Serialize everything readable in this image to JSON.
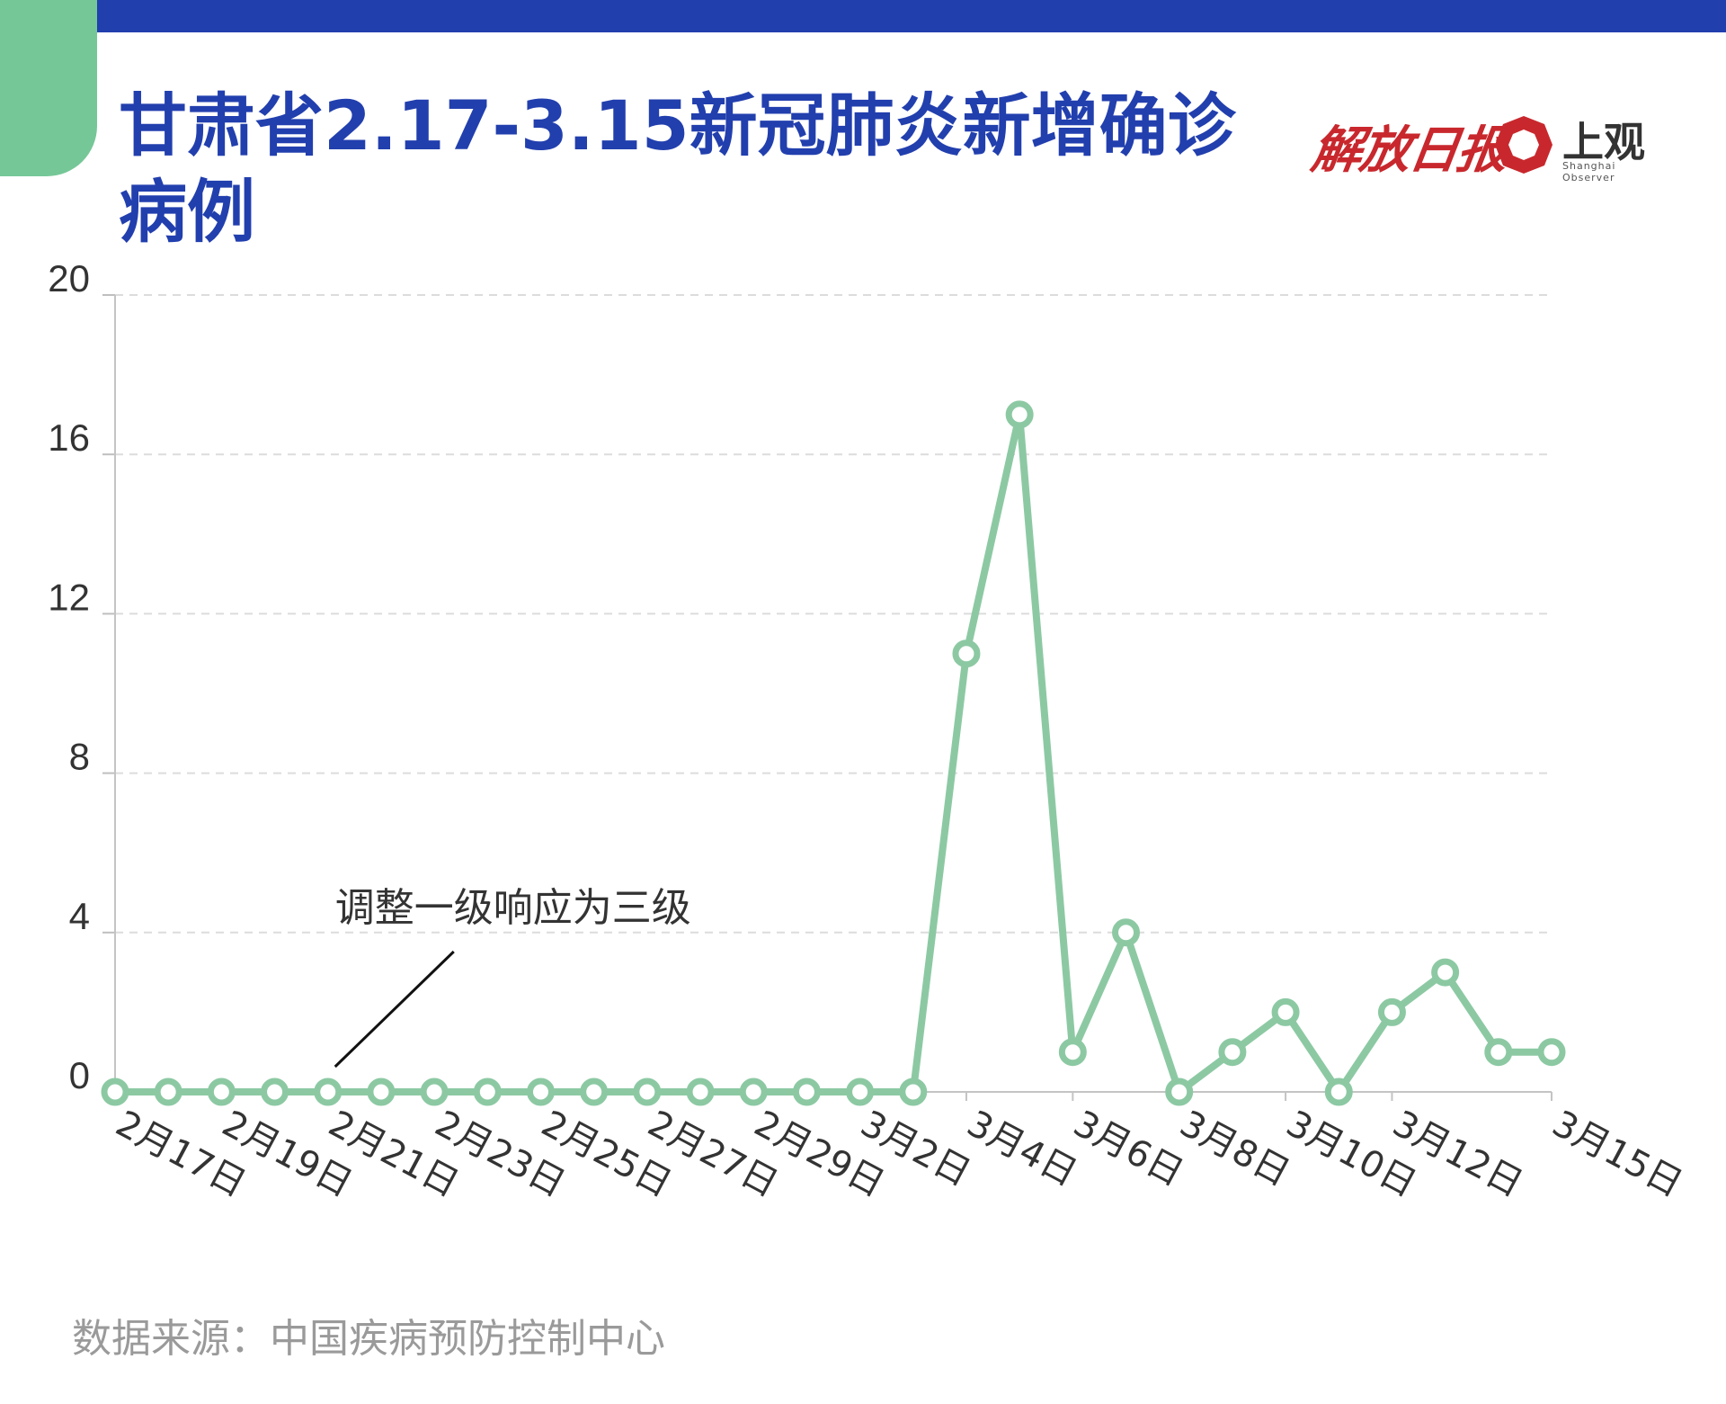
{
  "header": {
    "title": "甘肃省2.17-3.15新冠肺炎新增确诊病例",
    "logo_calligraphy": "解放日报",
    "logo_text": "上观",
    "logo_sub": "Shanghai Observer",
    "accent_color": "#223fae",
    "tab_color": "#76c797",
    "logo_color": "#c8282d"
  },
  "chart_data": {
    "type": "line",
    "title": "甘肃省2.17-3.15新冠肺炎新增确诊病例",
    "ylim": [
      0,
      20
    ],
    "yticks": [
      0,
      4,
      8,
      12,
      16,
      20
    ],
    "grid": true,
    "line_color": "#8cc9a3",
    "x": [
      "2月17日",
      "2月18日",
      "2月19日",
      "2月20日",
      "2月21日",
      "2月22日",
      "2月23日",
      "2月24日",
      "2月25日",
      "2月26日",
      "2月27日",
      "2月28日",
      "2月29日",
      "3月1日",
      "3月2日",
      "3月3日",
      "3月4日",
      "3月5日",
      "3月6日",
      "3月7日",
      "3月8日",
      "3月9日",
      "3月10日",
      "3月11日",
      "3月12日",
      "3月13日",
      "3月14日",
      "3月15日"
    ],
    "xtick_labels": [
      "2月17日",
      "2月19日",
      "2月21日",
      "2月23日",
      "2月25日",
      "2月27日",
      "2月29日",
      "3月2日",
      "3月4日",
      "3月6日",
      "3月8日",
      "3月10日",
      "3月12日",
      "3月15日"
    ],
    "series": [
      {
        "values": [
          0,
          0,
          0,
          0,
          0,
          0,
          0,
          0,
          0,
          0,
          0,
          0,
          0,
          0,
          0,
          0,
          11,
          17,
          1,
          4,
          0,
          1,
          2,
          0,
          2,
          3,
          1,
          1
        ]
      }
    ],
    "annotation": {
      "text": "调整一级响应为三级",
      "point": "2月21日"
    }
  },
  "footer": {
    "source": "数据来源：中国疾病预防控制中心"
  }
}
